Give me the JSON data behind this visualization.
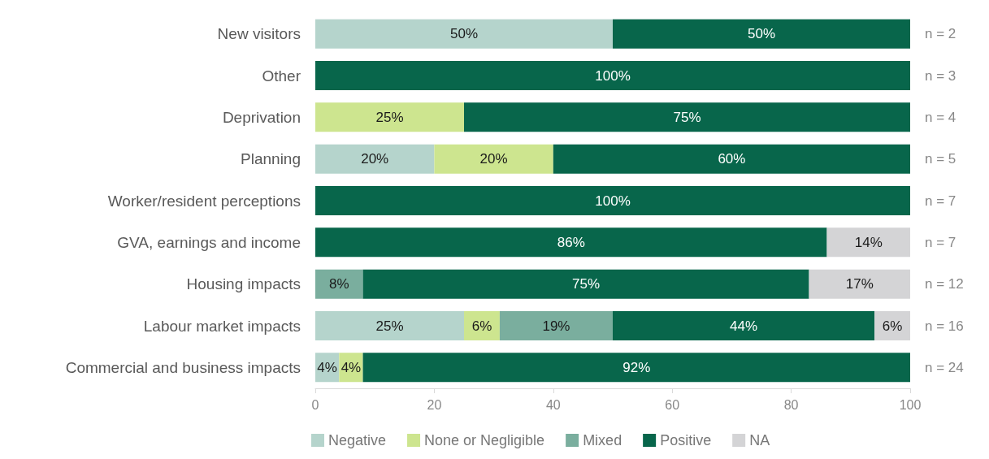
{
  "chart_data": {
    "type": "bar",
    "orientation": "horizontal",
    "stacked": true,
    "categories": [
      "New visitors",
      "Other",
      "Deprivation",
      "Planning",
      "Worker/resident perceptions",
      "GVA, earnings and income",
      "Housing impacts",
      "Labour market impacts",
      "Commercial and business impacts"
    ],
    "series": [
      {
        "name": "Negative",
        "color": "#b5d4cc",
        "values": [
          50,
          null,
          null,
          20,
          null,
          null,
          null,
          25,
          4
        ],
        "value_labels": [
          "50%",
          null,
          null,
          "20%",
          null,
          null,
          null,
          "25%",
          "4%"
        ]
      },
      {
        "name": "None or Negligible",
        "color": "#cde58f",
        "values": [
          null,
          null,
          25,
          20,
          null,
          null,
          null,
          6,
          4
        ],
        "value_labels": [
          null,
          null,
          "25%",
          "20%",
          null,
          null,
          null,
          "6%",
          "4%"
        ]
      },
      {
        "name": "Mixed",
        "color": "#7aae9e",
        "values": [
          null,
          null,
          null,
          null,
          null,
          null,
          8,
          19,
          null
        ],
        "value_labels": [
          null,
          null,
          null,
          null,
          null,
          null,
          "8%",
          "19%",
          null
        ]
      },
      {
        "name": "Positive",
        "color": "#08664b",
        "values": [
          50,
          100,
          75,
          60,
          100,
          86,
          75,
          44,
          92
        ],
        "value_labels": [
          "50%",
          "100%",
          "75%",
          "60%",
          "100%",
          "86%",
          "75%",
          "44%",
          "92%"
        ]
      },
      {
        "name": "NA",
        "color": "#d4d4d6",
        "values": [
          null,
          null,
          null,
          null,
          null,
          14,
          17,
          6,
          null
        ],
        "value_labels": [
          null,
          null,
          null,
          null,
          null,
          "14%",
          "17%",
          "6%",
          null
        ]
      }
    ],
    "xlim": [
      0,
      100
    ],
    "xticks": [
      0,
      20,
      40,
      60,
      80,
      100
    ],
    "grid": false,
    "legend": "bottom",
    "annotations": [
      "n = 2",
      "n = 3",
      "n = 4",
      "n = 5",
      "n = 7",
      "n = 7",
      "n = 12",
      "n = 16",
      "n = 24"
    ]
  }
}
